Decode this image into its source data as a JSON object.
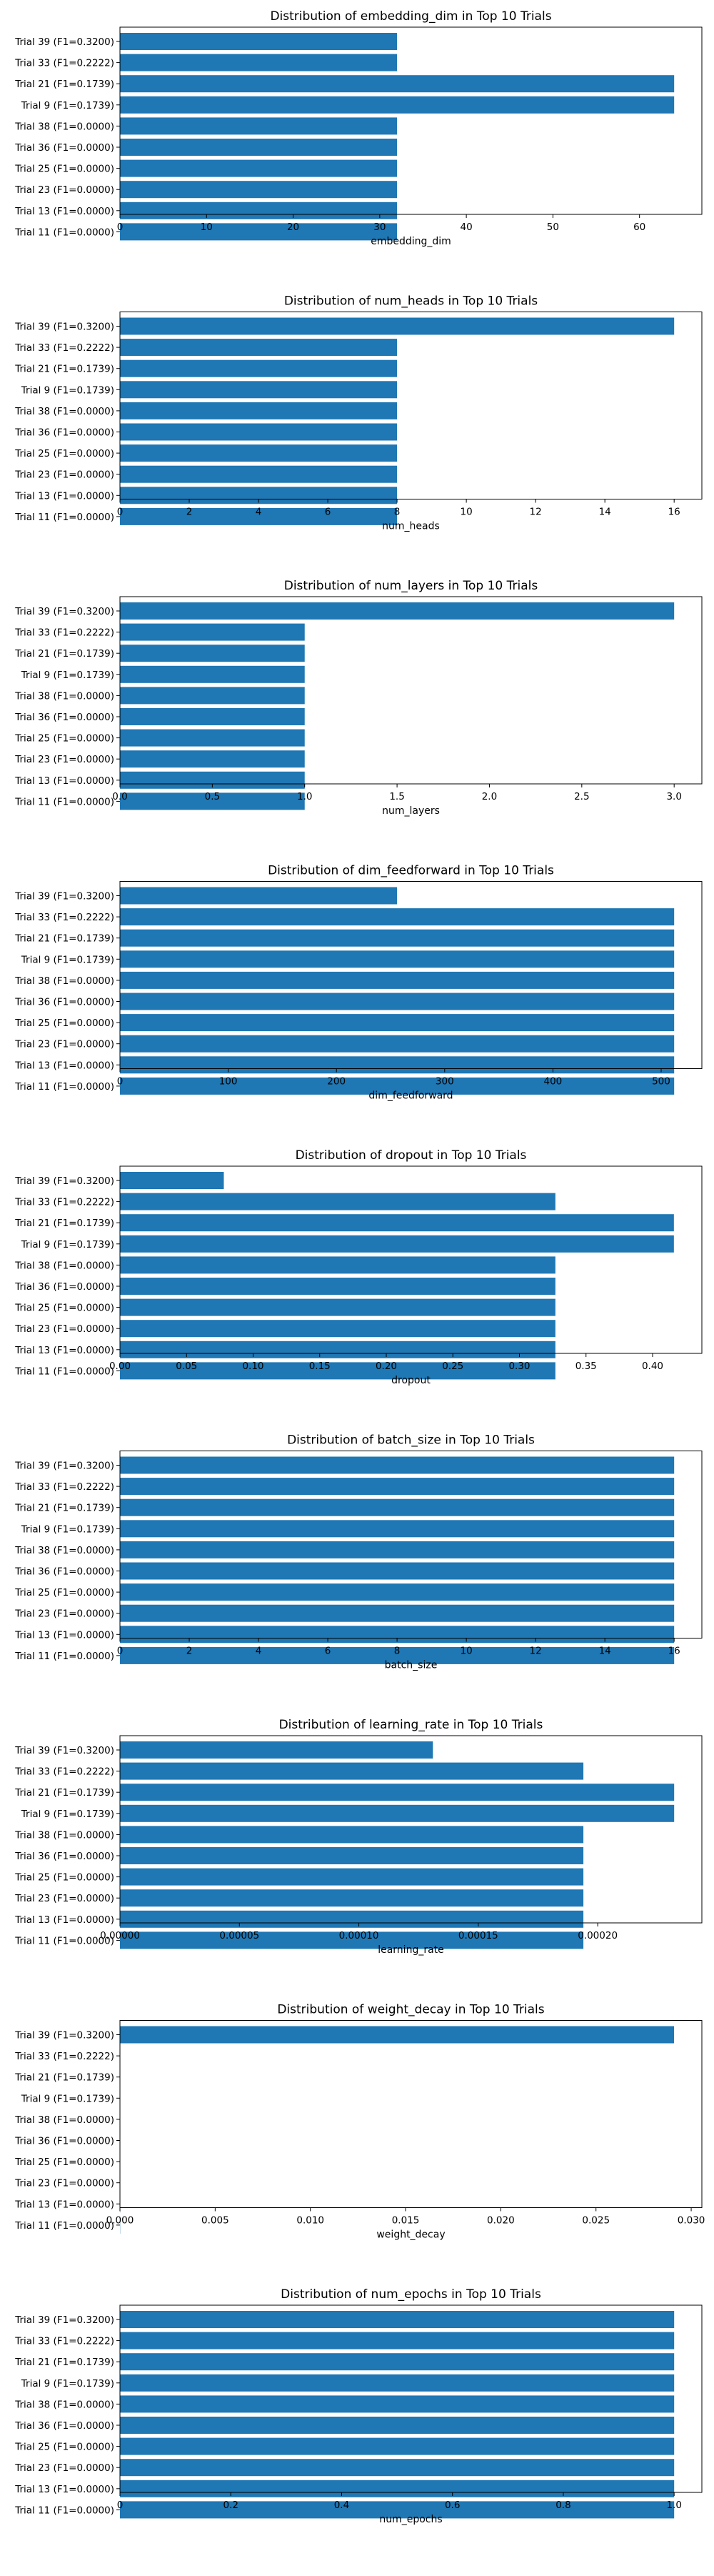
{
  "colors": {
    "bar": "#1f77b4",
    "axis": "#000000",
    "background": "#ffffff"
  },
  "categories": [
    "Trial 39 (F1=0.3200)",
    "Trial 33 (F1=0.2222)",
    "Trial 21 (F1=0.1739)",
    "Trial 9 (F1=0.1739)",
    "Trial 38 (F1=0.0000)",
    "Trial 36 (F1=0.0000)",
    "Trial 25 (F1=0.0000)",
    "Trial 23 (F1=0.0000)",
    "Trial 13 (F1=0.0000)",
    "Trial 11 (F1=0.0000)"
  ],
  "chart_data": [
    {
      "type": "bar",
      "orientation": "horizontal",
      "title": "Distribution of embedding_dim in Top 10 Trials",
      "xlabel": "embedding_dim",
      "values": [
        32,
        32,
        64,
        64,
        32,
        32,
        32,
        32,
        32,
        32
      ],
      "xlim": [
        0,
        67.2
      ],
      "xticks": [
        0,
        10,
        20,
        30,
        40,
        50,
        60
      ],
      "xtick_labels": [
        "0",
        "10",
        "20",
        "30",
        "40",
        "50",
        "60"
      ]
    },
    {
      "type": "bar",
      "orientation": "horizontal",
      "title": "Distribution of num_heads in Top 10 Trials",
      "xlabel": "num_heads",
      "values": [
        16,
        8,
        8,
        8,
        8,
        8,
        8,
        8,
        8,
        8
      ],
      "xlim": [
        0,
        16.8
      ],
      "xticks": [
        0,
        2,
        4,
        6,
        8,
        10,
        12,
        14,
        16
      ],
      "xtick_labels": [
        "0",
        "2",
        "4",
        "6",
        "8",
        "10",
        "12",
        "14",
        "16"
      ]
    },
    {
      "type": "bar",
      "orientation": "horizontal",
      "title": "Distribution of num_layers in Top 10 Trials",
      "xlabel": "num_layers",
      "values": [
        3,
        1,
        1,
        1,
        1,
        1,
        1,
        1,
        1,
        1
      ],
      "xlim": [
        0,
        3.15
      ],
      "xticks": [
        0,
        0.5,
        1,
        1.5,
        2,
        2.5,
        3
      ],
      "xtick_labels": [
        "0.0",
        "0.5",
        "1.0",
        "1.5",
        "2.0",
        "2.5",
        "3.0"
      ]
    },
    {
      "type": "bar",
      "orientation": "horizontal",
      "title": "Distribution of dim_feedforward in Top 10 Trials",
      "xlabel": "dim_feedforward",
      "values": [
        256,
        512,
        512,
        512,
        512,
        512,
        512,
        512,
        512,
        512
      ],
      "xlim": [
        0,
        537.6
      ],
      "xticks": [
        0,
        100,
        200,
        300,
        400,
        500
      ],
      "xtick_labels": [
        "0",
        "100",
        "200",
        "300",
        "400",
        "500"
      ]
    },
    {
      "type": "bar",
      "orientation": "horizontal",
      "title": "Distribution of dropout in Top 10 Trials",
      "xlabel": "dropout",
      "values": [
        0.078,
        0.327,
        0.416,
        0.416,
        0.327,
        0.327,
        0.327,
        0.327,
        0.327,
        0.327
      ],
      "xlim": [
        0,
        0.437
      ],
      "xticks": [
        0,
        0.05,
        0.1,
        0.15,
        0.2,
        0.25,
        0.3,
        0.35,
        0.4
      ],
      "xtick_labels": [
        "0.00",
        "0.05",
        "0.10",
        "0.15",
        "0.20",
        "0.25",
        "0.30",
        "0.35",
        "0.40"
      ]
    },
    {
      "type": "bar",
      "orientation": "horizontal",
      "title": "Distribution of batch_size in Top 10 Trials",
      "xlabel": "batch_size",
      "values": [
        16,
        16,
        16,
        16,
        16,
        16,
        16,
        16,
        16,
        16
      ],
      "xlim": [
        0,
        16.8
      ],
      "xticks": [
        0,
        2,
        4,
        6,
        8,
        10,
        12,
        14,
        16
      ],
      "xtick_labels": [
        "0",
        "2",
        "4",
        "6",
        "8",
        "10",
        "12",
        "14",
        "16"
      ]
    },
    {
      "type": "bar",
      "orientation": "horizontal",
      "title": "Distribution of learning_rate in Top 10 Trials",
      "xlabel": "learning_rate",
      "values": [
        0.000131,
        0.000194,
        0.000232,
        0.000232,
        0.000194,
        0.000194,
        0.000194,
        0.000194,
        0.000194,
        0.000194
      ],
      "xlim": [
        0,
        0.0002436
      ],
      "xticks": [
        0,
        5e-05,
        0.0001,
        0.00015,
        0.0002
      ],
      "xtick_labels": [
        "0.00000",
        "0.00005",
        "0.00010",
        "0.00015",
        "0.00020"
      ]
    },
    {
      "type": "bar",
      "orientation": "horizontal",
      "title": "Distribution of weight_decay in Top 10 Trials",
      "xlabel": "weight_decay",
      "values": [
        0.0291,
        1e-05,
        1e-05,
        1e-05,
        1e-05,
        1e-05,
        1e-05,
        1e-05,
        1e-05,
        1e-05
      ],
      "xlim": [
        0,
        0.03056
      ],
      "xticks": [
        0,
        0.005,
        0.01,
        0.015,
        0.02,
        0.025,
        0.03
      ],
      "xtick_labels": [
        "0.000",
        "0.005",
        "0.010",
        "0.015",
        "0.020",
        "0.025",
        "0.030"
      ]
    },
    {
      "type": "bar",
      "orientation": "horizontal",
      "title": "Distribution of num_epochs in Top 10 Trials",
      "xlabel": "num_epochs",
      "values": [
        1,
        1,
        1,
        1,
        1,
        1,
        1,
        1,
        1,
        1
      ],
      "xlim": [
        0,
        1.05
      ],
      "xticks": [
        0,
        0.2,
        0.4,
        0.6,
        0.8,
        1.0
      ],
      "xtick_labels": [
        "0",
        "0.2",
        "0.4",
        "0.6",
        "0.8",
        "1.0"
      ]
    }
  ]
}
